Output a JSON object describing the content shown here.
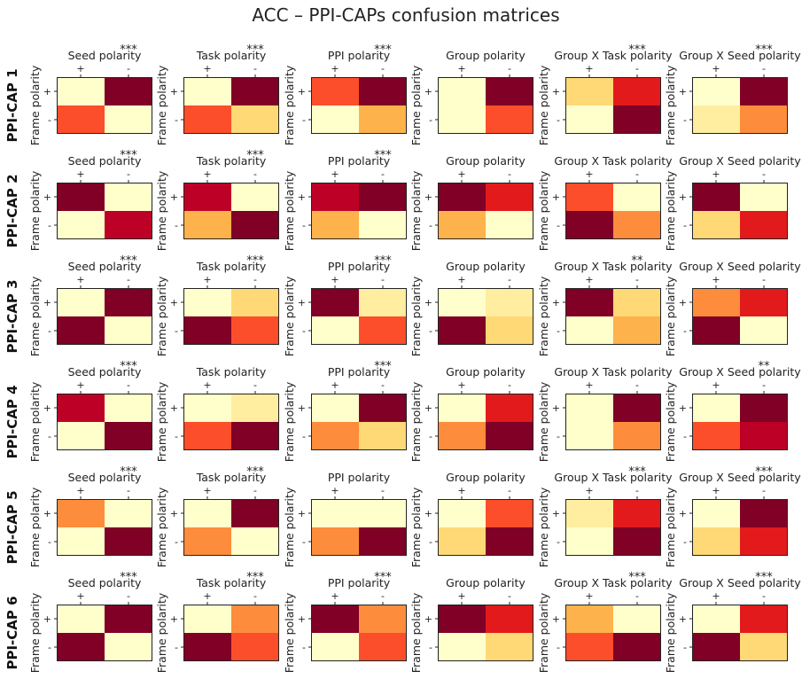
{
  "chart_data": {
    "type": "heatmap",
    "title": "ACC – PPI-CAPs confusion matrices",
    "colormap": "YlOrRd",
    "colors": {
      "0": "#ffffcc",
      "1": "#ffeda0",
      "2": "#fed976",
      "3": "#feb24c",
      "4": "#fd8d3c",
      "5": "#fc4e2a",
      "6": "#e31a1c",
      "7": "#bd0026",
      "8": "#800026"
    },
    "ylabel": "Frame polarity",
    "x_ticks": [
      "+",
      "-"
    ],
    "y_ticks": [
      "+",
      "-"
    ],
    "row_labels": [
      "PPI-CAP 1",
      "PPI-CAP 2",
      "PPI-CAP 3",
      "PPI-CAP 4",
      "PPI-CAP 5",
      "PPI-CAP 6"
    ],
    "column_titles": [
      "Seed polarity",
      "Task polarity",
      "PPI polarity",
      "Group polarity",
      "Group X Task polarity",
      "Group X Seed polarity"
    ],
    "value_scale": "relative intensity 0 (lightest) to 8 (darkest)",
    "matrices": [
      [
        {
          "values": [
            [
              0,
              8
            ],
            [
              5,
              0
            ]
          ],
          "significance": "***"
        },
        {
          "values": [
            [
              0,
              8
            ],
            [
              5,
              2
            ]
          ],
          "significance": "***"
        },
        {
          "values": [
            [
              5,
              8
            ],
            [
              0,
              3
            ]
          ],
          "significance": "***"
        },
        {
          "values": [
            [
              0,
              8
            ],
            [
              0,
              5
            ]
          ],
          "significance": ""
        },
        {
          "values": [
            [
              2,
              6
            ],
            [
              0,
              8
            ]
          ],
          "significance": "***"
        },
        {
          "values": [
            [
              0,
              8
            ],
            [
              1,
              4
            ]
          ],
          "significance": "***"
        }
      ],
      [
        {
          "values": [
            [
              8,
              0
            ],
            [
              0,
              7
            ]
          ],
          "significance": "***"
        },
        {
          "values": [
            [
              7,
              0
            ],
            [
              3,
              8
            ]
          ],
          "significance": "***"
        },
        {
          "values": [
            [
              7,
              8
            ],
            [
              3,
              0
            ]
          ],
          "significance": "***"
        },
        {
          "values": [
            [
              8,
              6
            ],
            [
              3,
              0
            ]
          ],
          "significance": ""
        },
        {
          "values": [
            [
              5,
              0
            ],
            [
              8,
              4
            ]
          ],
          "significance": ""
        },
        {
          "values": [
            [
              8,
              0
            ],
            [
              2,
              6
            ]
          ],
          "significance": ""
        }
      ],
      [
        {
          "values": [
            [
              0,
              8
            ],
            [
              8,
              0
            ]
          ],
          "significance": "***"
        },
        {
          "values": [
            [
              0,
              2
            ],
            [
              8,
              5
            ]
          ],
          "significance": "***"
        },
        {
          "values": [
            [
              8,
              1
            ],
            [
              0,
              5
            ]
          ],
          "significance": "***"
        },
        {
          "values": [
            [
              0,
              1
            ],
            [
              8,
              2
            ]
          ],
          "significance": ""
        },
        {
          "values": [
            [
              8,
              2
            ],
            [
              0,
              3
            ]
          ],
          "significance": "**"
        },
        {
          "values": [
            [
              4,
              6
            ],
            [
              8,
              0
            ]
          ],
          "significance": ""
        }
      ],
      [
        {
          "values": [
            [
              7,
              0
            ],
            [
              0,
              8
            ]
          ],
          "significance": "***"
        },
        {
          "values": [
            [
              0,
              1
            ],
            [
              5,
              8
            ]
          ],
          "significance": ""
        },
        {
          "values": [
            [
              0,
              8
            ],
            [
              4,
              2
            ]
          ],
          "significance": "***"
        },
        {
          "values": [
            [
              0,
              6
            ],
            [
              4,
              8
            ]
          ],
          "significance": ""
        },
        {
          "values": [
            [
              0,
              8
            ],
            [
              0,
              4
            ]
          ],
          "significance": ""
        },
        {
          "values": [
            [
              0,
              8
            ],
            [
              5,
              7
            ]
          ],
          "significance": "**"
        }
      ],
      [
        {
          "values": [
            [
              4,
              0
            ],
            [
              0,
              8
            ]
          ],
          "significance": "***"
        },
        {
          "values": [
            [
              0,
              8
            ],
            [
              4,
              0
            ]
          ],
          "significance": "***"
        },
        {
          "values": [
            [
              0,
              0
            ],
            [
              4,
              8
            ]
          ],
          "significance": ""
        },
        {
          "values": [
            [
              0,
              5
            ],
            [
              2,
              8
            ]
          ],
          "significance": ""
        },
        {
          "values": [
            [
              1,
              6
            ],
            [
              0,
              8
            ]
          ],
          "significance": "***"
        },
        {
          "values": [
            [
              0,
              8
            ],
            [
              2,
              6
            ]
          ],
          "significance": "***"
        }
      ],
      [
        {
          "values": [
            [
              0,
              8
            ],
            [
              8,
              0
            ]
          ],
          "significance": "***"
        },
        {
          "values": [
            [
              0,
              4
            ],
            [
              8,
              5
            ]
          ],
          "significance": "***"
        },
        {
          "values": [
            [
              8,
              4
            ],
            [
              0,
              5
            ]
          ],
          "significance": "***"
        },
        {
          "values": [
            [
              8,
              6
            ],
            [
              0,
              2
            ]
          ],
          "significance": ""
        },
        {
          "values": [
            [
              3,
              0
            ],
            [
              5,
              8
            ]
          ],
          "significance": "***"
        },
        {
          "values": [
            [
              0,
              6
            ],
            [
              8,
              2
            ]
          ],
          "significance": "***"
        }
      ]
    ]
  }
}
